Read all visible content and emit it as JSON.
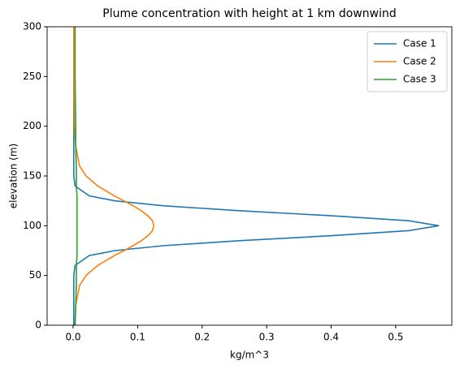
{
  "chart_data": {
    "type": "line",
    "orientation": "horizontal",
    "title": "Plume concentration with height at 1 km downwind",
    "x_label": "kg/m^3",
    "y_label": "elevation (m)",
    "y": [
      0,
      20,
      40,
      50,
      60,
      70,
      75,
      80,
      85,
      90,
      95,
      100,
      105,
      110,
      115,
      120,
      125,
      130,
      140,
      150,
      160,
      180,
      200,
      250,
      300
    ],
    "series": [
      {
        "name": "Case 1",
        "color": "#1f77b4",
        "values": [
          0.001,
          0.001,
          0.001,
          0.001,
          0.003,
          0.025,
          0.065,
          0.141,
          0.26,
          0.401,
          0.52,
          0.567,
          0.52,
          0.401,
          0.26,
          0.141,
          0.065,
          0.025,
          0.003,
          0.001,
          0.001,
          0.001,
          0.001,
          0.001,
          0.001
        ]
      },
      {
        "name": "Case 2",
        "color": "#ff7f0e",
        "values": [
          0.003,
          0.004,
          0.01,
          0.02,
          0.038,
          0.064,
          0.079,
          0.093,
          0.106,
          0.116,
          0.123,
          0.125,
          0.123,
          0.116,
          0.106,
          0.093,
          0.079,
          0.064,
          0.038,
          0.02,
          0.01,
          0.004,
          0.002,
          0.001,
          0.001
        ]
      },
      {
        "name": "Case 3",
        "color": "#2ca02c",
        "values": [
          0.003,
          0.004,
          0.005,
          0.005,
          0.005,
          0.006,
          0.006,
          0.006,
          0.006,
          0.006,
          0.006,
          0.006,
          0.006,
          0.006,
          0.006,
          0.006,
          0.006,
          0.006,
          0.005,
          0.005,
          0.005,
          0.004,
          0.004,
          0.003,
          0.003
        ]
      }
    ],
    "xlim": [
      -0.0403,
      0.587
    ],
    "xticks": [
      0.0,
      0.1,
      0.2,
      0.3,
      0.4,
      0.5
    ],
    "ylim": [
      0,
      300
    ],
    "yticks": [
      0,
      50,
      100,
      150,
      200,
      250,
      300
    ],
    "legend": "upper right",
    "grid": false
  }
}
